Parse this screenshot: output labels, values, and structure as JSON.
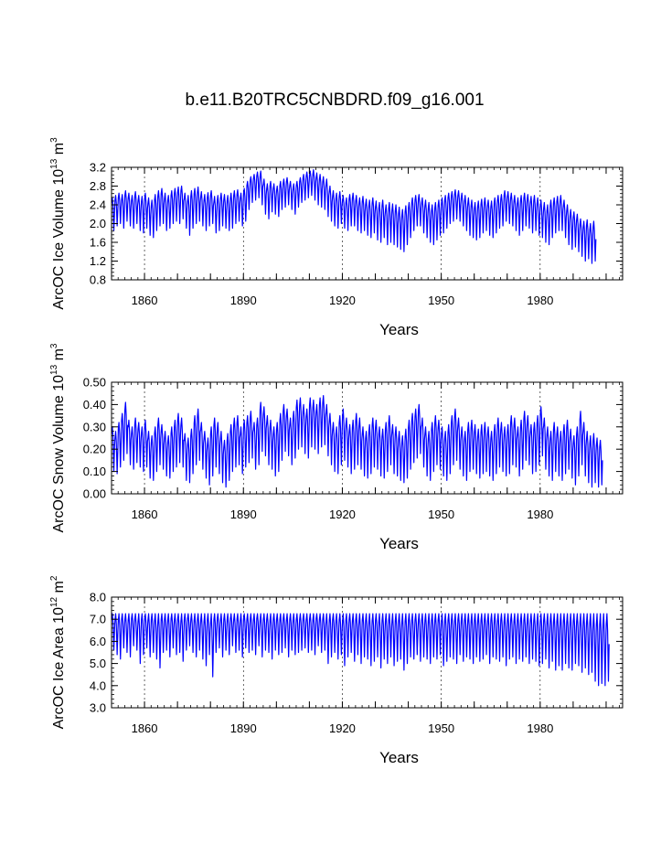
{
  "title": "b.e11.B20TRC5CNBDRD.f09_g16.001",
  "chart_data": [
    {
      "type": "line",
      "ylabel": "ArcOC Ice Volume 10",
      "ylabel_exp": "13",
      "ylabel_unit": "m",
      "ylabel_unit_exp": "3",
      "xlabel": "Years",
      "xlim": [
        1850,
        2005
      ],
      "ylim": [
        0.8,
        3.2
      ],
      "yticks": [
        0.8,
        1.2,
        1.6,
        2.0,
        2.4,
        2.8,
        3.2
      ],
      "ytick_labels": [
        "0.8",
        "1.2",
        "1.6",
        "2.0",
        "2.4",
        "2.8",
        "3.2"
      ],
      "xticks": [
        1860,
        1890,
        1920,
        1950,
        1980
      ],
      "xtick_labels": [
        "1860",
        "1890",
        "1920",
        "1950",
        "1980"
      ],
      "line_color": "#0000ff",
      "annual_max": [
        2.55,
        2.6,
        2.65,
        2.62,
        2.7,
        2.65,
        2.6,
        2.68,
        2.6,
        2.58,
        2.65,
        2.55,
        2.5,
        2.62,
        2.7,
        2.75,
        2.65,
        2.6,
        2.7,
        2.75,
        2.78,
        2.8,
        2.65,
        2.6,
        2.7,
        2.75,
        2.78,
        2.68,
        2.62,
        2.66,
        2.7,
        2.58,
        2.6,
        2.65,
        2.62,
        2.6,
        2.65,
        2.7,
        2.72,
        2.65,
        2.75,
        2.9,
        3.0,
        3.05,
        3.1,
        3.12,
        2.95,
        2.85,
        2.9,
        2.85,
        2.8,
        2.9,
        2.95,
        2.98,
        2.9,
        2.85,
        2.9,
        2.98,
        3.05,
        3.1,
        3.12,
        3.15,
        3.08,
        3.05,
        3.0,
        2.95,
        2.8,
        2.7,
        2.65,
        2.68,
        2.6,
        2.55,
        2.62,
        2.65,
        2.6,
        2.55,
        2.58,
        2.52,
        2.5,
        2.55,
        2.48,
        2.45,
        2.5,
        2.4,
        2.45,
        2.42,
        2.4,
        2.35,
        2.3,
        2.38,
        2.45,
        2.55,
        2.6,
        2.62,
        2.55,
        2.5,
        2.45,
        2.4,
        2.45,
        2.5,
        2.55,
        2.6,
        2.65,
        2.68,
        2.72,
        2.7,
        2.65,
        2.6,
        2.55,
        2.5,
        2.45,
        2.48,
        2.52,
        2.55,
        2.5,
        2.48,
        2.55,
        2.6,
        2.62,
        2.7,
        2.68,
        2.65,
        2.6,
        2.55,
        2.6,
        2.65,
        2.62,
        2.58,
        2.6,
        2.55,
        2.5,
        2.45,
        2.4,
        2.5,
        2.55,
        2.58,
        2.6,
        2.5,
        2.4,
        2.3,
        2.25,
        2.2,
        2.1,
        2.05,
        2.08,
        2.0,
        2.05
      ],
      "annual_min": [
        1.85,
        1.95,
        2.0,
        1.9,
        2.05,
        1.95,
        1.9,
        2.0,
        1.85,
        1.8,
        1.9,
        1.75,
        1.7,
        1.85,
        1.95,
        2.0,
        1.85,
        1.9,
        2.0,
        2.05,
        2.0,
        2.1,
        1.9,
        1.75,
        1.9,
        2.0,
        2.05,
        1.95,
        1.85,
        1.95,
        2.0,
        1.8,
        1.85,
        1.95,
        1.9,
        1.85,
        1.9,
        2.0,
        2.05,
        1.95,
        2.05,
        2.3,
        2.45,
        2.5,
        2.55,
        2.4,
        2.2,
        2.1,
        2.25,
        2.2,
        2.15,
        2.3,
        2.35,
        2.4,
        2.3,
        2.2,
        2.35,
        2.45,
        2.5,
        2.55,
        2.6,
        2.5,
        2.4,
        2.35,
        2.3,
        2.15,
        2.05,
        1.95,
        1.9,
        2.0,
        1.9,
        1.85,
        1.95,
        1.95,
        1.85,
        1.8,
        1.85,
        1.75,
        1.7,
        1.8,
        1.65,
        1.6,
        1.7,
        1.55,
        1.6,
        1.55,
        1.5,
        1.45,
        1.4,
        1.55,
        1.7,
        1.85,
        1.95,
        1.95,
        1.8,
        1.7,
        1.6,
        1.55,
        1.65,
        1.75,
        1.8,
        1.9,
        2.0,
        2.05,
        2.1,
        2.05,
        1.95,
        1.85,
        1.75,
        1.7,
        1.65,
        1.7,
        1.8,
        1.85,
        1.75,
        1.7,
        1.8,
        1.9,
        1.95,
        2.05,
        2.0,
        1.95,
        1.85,
        1.75,
        1.85,
        1.95,
        1.9,
        1.8,
        1.85,
        1.75,
        1.7,
        1.6,
        1.55,
        1.7,
        1.8,
        1.85,
        1.85,
        1.7,
        1.55,
        1.45,
        1.5,
        1.4,
        1.3,
        1.2,
        1.25,
        1.15,
        1.2
      ]
    },
    {
      "type": "line",
      "ylabel": "ArcOC Snow Volume 10",
      "ylabel_exp": "13",
      "ylabel_unit": "m",
      "ylabel_unit_exp": "3",
      "xlabel": "Years",
      "xlim": [
        1850,
        2005
      ],
      "ylim": [
        0.0,
        0.5
      ],
      "yticks": [
        0.0,
        0.1,
        0.2,
        0.3,
        0.4,
        0.5
      ],
      "ytick_labels": [
        "0.00",
        "0.10",
        "0.20",
        "0.30",
        "0.40",
        "0.50"
      ],
      "xticks": [
        1860,
        1890,
        1920,
        1950,
        1980
      ],
      "xtick_labels": [
        "1860",
        "1890",
        "1920",
        "1950",
        "1980"
      ],
      "line_color": "#0000ff",
      "annual_max": [
        0.3,
        0.28,
        0.32,
        0.36,
        0.41,
        0.33,
        0.3,
        0.34,
        0.32,
        0.3,
        0.33,
        0.28,
        0.26,
        0.3,
        0.34,
        0.31,
        0.28,
        0.26,
        0.3,
        0.33,
        0.36,
        0.34,
        0.27,
        0.25,
        0.29,
        0.35,
        0.38,
        0.32,
        0.28,
        0.25,
        0.3,
        0.34,
        0.32,
        0.28,
        0.24,
        0.27,
        0.31,
        0.34,
        0.35,
        0.3,
        0.33,
        0.35,
        0.37,
        0.32,
        0.34,
        0.41,
        0.39,
        0.35,
        0.33,
        0.3,
        0.32,
        0.36,
        0.4,
        0.38,
        0.34,
        0.37,
        0.42,
        0.43,
        0.4,
        0.38,
        0.43,
        0.42,
        0.4,
        0.43,
        0.44,
        0.4,
        0.36,
        0.32,
        0.3,
        0.35,
        0.38,
        0.34,
        0.31,
        0.33,
        0.36,
        0.34,
        0.3,
        0.28,
        0.31,
        0.34,
        0.33,
        0.3,
        0.29,
        0.32,
        0.35,
        0.31,
        0.3,
        0.28,
        0.26,
        0.29,
        0.33,
        0.36,
        0.38,
        0.4,
        0.34,
        0.3,
        0.28,
        0.32,
        0.35,
        0.33,
        0.3,
        0.28,
        0.31,
        0.35,
        0.38,
        0.34,
        0.3,
        0.28,
        0.32,
        0.33,
        0.31,
        0.29,
        0.31,
        0.32,
        0.3,
        0.28,
        0.31,
        0.34,
        0.32,
        0.3,
        0.31,
        0.35,
        0.34,
        0.3,
        0.33,
        0.37,
        0.35,
        0.31,
        0.32,
        0.35,
        0.39,
        0.34,
        0.3,
        0.28,
        0.32,
        0.3,
        0.28,
        0.31,
        0.33,
        0.29,
        0.26,
        0.3,
        0.37,
        0.32,
        0.28,
        0.26,
        0.27,
        0.25,
        0.24
      ],
      "annual_min": [
        0.1,
        0.09,
        0.12,
        0.15,
        0.18,
        0.13,
        0.11,
        0.14,
        0.12,
        0.1,
        0.12,
        0.07,
        0.06,
        0.1,
        0.13,
        0.11,
        0.08,
        0.07,
        0.1,
        0.12,
        0.14,
        0.12,
        0.06,
        0.05,
        0.09,
        0.13,
        0.15,
        0.11,
        0.07,
        0.04,
        0.08,
        0.12,
        0.09,
        0.05,
        0.03,
        0.06,
        0.1,
        0.12,
        0.13,
        0.09,
        0.12,
        0.14,
        0.16,
        0.11,
        0.13,
        0.19,
        0.17,
        0.13,
        0.11,
        0.08,
        0.1,
        0.15,
        0.19,
        0.17,
        0.13,
        0.16,
        0.2,
        0.21,
        0.18,
        0.16,
        0.21,
        0.2,
        0.18,
        0.21,
        0.22,
        0.17,
        0.13,
        0.1,
        0.09,
        0.13,
        0.15,
        0.12,
        0.09,
        0.11,
        0.13,
        0.11,
        0.08,
        0.07,
        0.09,
        0.12,
        0.11,
        0.08,
        0.07,
        0.1,
        0.13,
        0.09,
        0.08,
        0.06,
        0.05,
        0.07,
        0.11,
        0.14,
        0.16,
        0.18,
        0.12,
        0.08,
        0.06,
        0.1,
        0.13,
        0.11,
        0.08,
        0.06,
        0.09,
        0.13,
        0.15,
        0.11,
        0.08,
        0.06,
        0.1,
        0.11,
        0.09,
        0.07,
        0.09,
        0.1,
        0.08,
        0.06,
        0.09,
        0.12,
        0.1,
        0.08,
        0.09,
        0.13,
        0.12,
        0.08,
        0.11,
        0.15,
        0.13,
        0.09,
        0.1,
        0.13,
        0.17,
        0.11,
        0.08,
        0.06,
        0.1,
        0.08,
        0.06,
        0.09,
        0.11,
        0.07,
        0.04,
        0.08,
        0.13,
        0.08,
        0.05,
        0.03,
        0.05,
        0.03,
        0.04
      ]
    },
    {
      "type": "line",
      "ylabel": "ArcOC Ice Area 10",
      "ylabel_exp": "12",
      "ylabel_unit": "m",
      "ylabel_unit_exp": "2",
      "xlabel": "Years",
      "xlim": [
        1850,
        2005
      ],
      "ylim": [
        3.0,
        8.0
      ],
      "yticks": [
        3.0,
        4.0,
        5.0,
        6.0,
        7.0,
        8.0
      ],
      "ytick_labels": [
        "3.0",
        "4.0",
        "5.0",
        "6.0",
        "7.0",
        "8.0"
      ],
      "xticks": [
        1860,
        1890,
        1920,
        1950,
        1980
      ],
      "xtick_labels": [
        "1860",
        "1890",
        "1920",
        "1950",
        "1980"
      ],
      "line_color": "#0000ff",
      "annual_max_value": 7.25,
      "annual_min": [
        5.6,
        5.4,
        5.2,
        5.7,
        5.5,
        5.3,
        5.8,
        5.6,
        5.0,
        5.4,
        5.7,
        5.3,
        5.5,
        5.2,
        4.8,
        5.5,
        5.6,
        5.3,
        5.7,
        5.4,
        5.5,
        5.1,
        5.6,
        5.8,
        5.5,
        5.3,
        5.6,
        5.2,
        4.9,
        5.4,
        4.4,
        5.5,
        5.7,
        5.3,
        5.6,
        5.4,
        5.8,
        5.5,
        5.6,
        5.3,
        5.7,
        5.5,
        5.6,
        5.4,
        5.8,
        5.3,
        5.6,
        5.5,
        5.2,
        5.6,
        5.4,
        5.5,
        5.7,
        5.3,
        5.6,
        5.4,
        5.5,
        5.6,
        5.7,
        5.5,
        5.6,
        5.4,
        5.8,
        5.5,
        5.6,
        5.0,
        5.3,
        5.5,
        5.2,
        5.4,
        4.9,
        5.3,
        5.5,
        5.1,
        5.4,
        5.0,
        5.3,
        5.2,
        4.9,
        5.1,
        5.3,
        4.8,
        5.2,
        5.0,
        5.3,
        4.9,
        5.1,
        5.2,
        4.7,
        5.0,
        5.3,
        5.2,
        5.4,
        5.1,
        5.3,
        5.2,
        5.0,
        5.3,
        5.2,
        5.4,
        4.9,
        5.1,
        5.3,
        5.2,
        5.0,
        5.4,
        5.1,
        5.3,
        5.2,
        5.0,
        5.3,
        5.1,
        5.2,
        5.4,
        5.0,
        5.3,
        5.2,
        5.1,
        5.3,
        4.9,
        5.2,
        5.3,
        5.0,
        5.2,
        5.1,
        5.3,
        5.0,
        5.2,
        5.1,
        4.9,
        5.0,
        5.2,
        4.8,
        5.1,
        4.7,
        4.9,
        4.7,
        5.0,
        4.8,
        4.7,
        5.0,
        4.9,
        4.6,
        4.8,
        4.5,
        4.6,
        4.2,
        4.0,
        4.1,
        4.0,
        4.2
      ]
    }
  ]
}
